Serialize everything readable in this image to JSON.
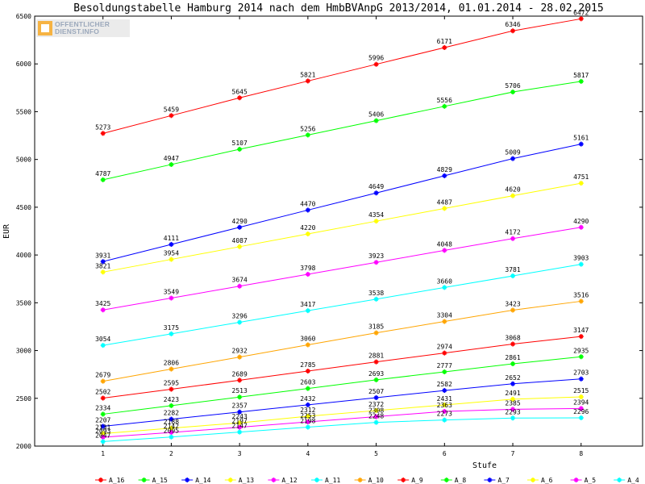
{
  "logo": {
    "line1": "OFFENTLICHER",
    "line2": "DIENST.INFO"
  },
  "chart_data": {
    "type": "line",
    "title": "Besoldungstabelle Hamburg 2014 nach dem HmbBVAnpG 2013/2014, 01.01.2014 - 28.02.2015",
    "xlabel": "Stufe",
    "ylabel": "EUR",
    "x": [
      1,
      2,
      3,
      4,
      5,
      6,
      7,
      8
    ],
    "xlim": [
      0,
      8.9
    ],
    "ylim": [
      2000,
      6500
    ],
    "yticks": [
      2000,
      2500,
      3000,
      3500,
      4000,
      4500,
      5000,
      5500,
      6000,
      6500
    ],
    "grid": false,
    "legend_position": "bottom",
    "series": [
      {
        "name": "A_16",
        "color": "#ff0000",
        "values": [
          5273,
          5459,
          5645,
          5821,
          5996,
          6171,
          6346,
          6472
        ]
      },
      {
        "name": "A_15",
        "color": "#00ff00",
        "values": [
          4787,
          4947,
          5107,
          5256,
          5406,
          5556,
          5706,
          5817
        ]
      },
      {
        "name": "A_14",
        "color": "#0000ff",
        "values": [
          3931,
          4111,
          4290,
          4470,
          4649,
          4829,
          5009,
          5161
        ]
      },
      {
        "name": "A_13",
        "color": "#ffff00",
        "values": [
          3821,
          3954,
          4087,
          4220,
          4354,
          4487,
          4620,
          4751
        ]
      },
      {
        "name": "A_12",
        "color": "#ff00ff",
        "values": [
          3425,
          3549,
          3674,
          3798,
          3923,
          4048,
          4172,
          4290
        ]
      },
      {
        "name": "A_11",
        "color": "#00ffff",
        "values": [
          3054,
          3175,
          3296,
          3417,
          3538,
          3660,
          3781,
          3903
        ]
      },
      {
        "name": "A_10",
        "color": "#ffa500",
        "values": [
          2679,
          2806,
          2932,
          3060,
          3185,
          3304,
          3423,
          3516
        ]
      },
      {
        "name": "A_9",
        "color": "#ff0000",
        "values": [
          2502,
          2595,
          2689,
          2785,
          2881,
          2974,
          3068,
          3147
        ]
      },
      {
        "name": "A_8",
        "color": "#00ff00",
        "values": [
          2334,
          2423,
          2513,
          2603,
          2693,
          2777,
          2861,
          2935
        ]
      },
      {
        "name": "A_7",
        "color": "#0000ff",
        "values": [
          2207,
          2282,
          2357,
          2432,
          2507,
          2582,
          2652,
          2703
        ]
      },
      {
        "name": "A_6",
        "color": "#ffff00",
        "values": [
          2131,
          2188,
          2243,
          2312,
          2372,
          2431,
          2491,
          2515
        ]
      },
      {
        "name": "A_5",
        "color": "#ff00ff",
        "values": [
          2093,
          2142,
          2197,
          2253,
          2308,
          2363,
          2385,
          2394
        ]
      },
      {
        "name": "A_4",
        "color": "#00ffff",
        "values": [
          2047,
          2095,
          2147,
          2198,
          2248,
          2273,
          2293,
          2296
        ]
      }
    ]
  }
}
